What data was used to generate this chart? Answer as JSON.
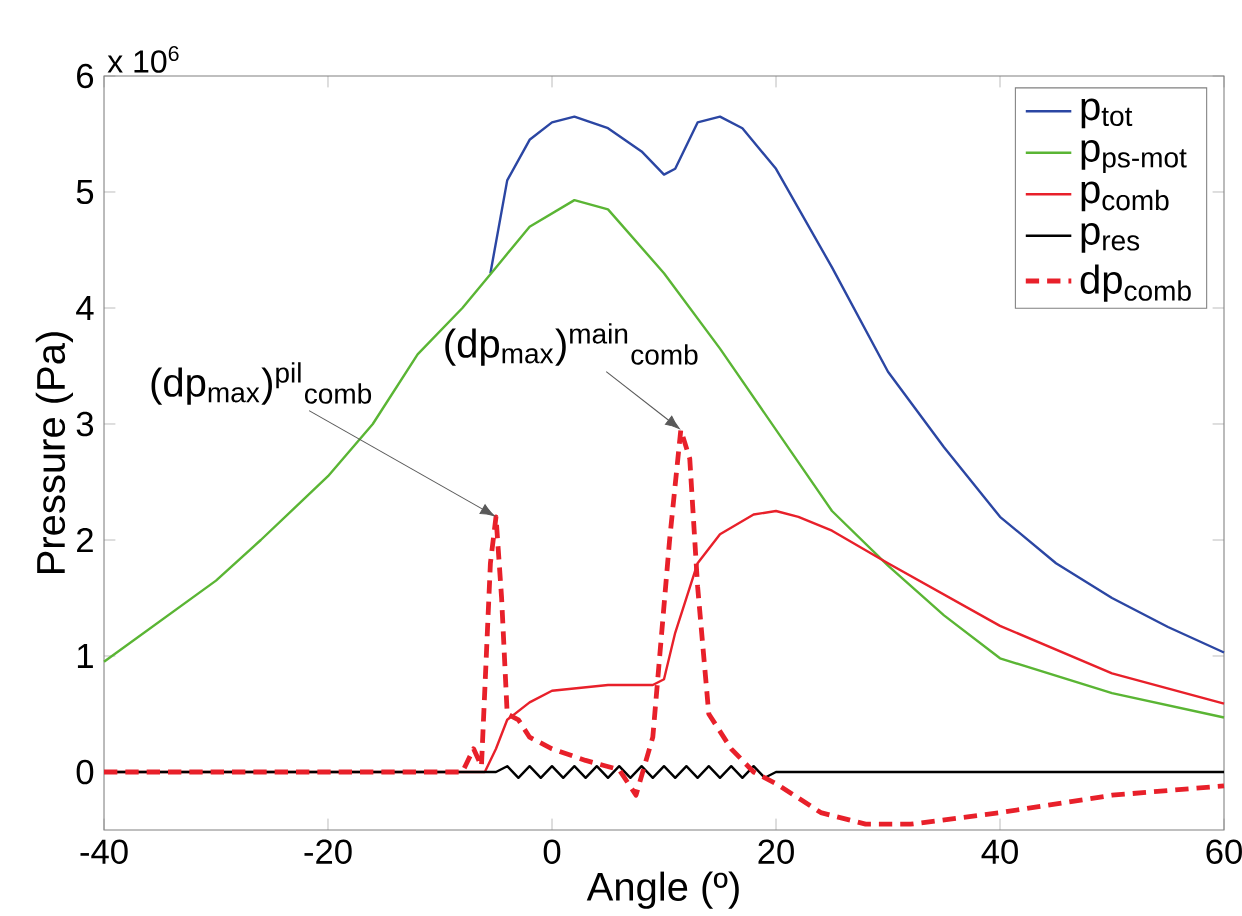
{
  "chart_data": {
    "type": "line",
    "xlabel": "Angle (º)",
    "ylabel": "Pressure (Pa)",
    "xlim": [
      -40,
      60
    ],
    "xticks": [
      -40,
      -20,
      0,
      20,
      40,
      60
    ],
    "ylim": [
      -0.5,
      6
    ],
    "yticks": [
      0,
      1,
      2,
      3,
      4,
      5,
      6
    ],
    "grid": false,
    "legend": "top right",
    "annotations": [
      "x 10$^{6}$",
      {
        "text": "(dp$_{max}$)$^{pil}$$_{comb}$",
        "x": -5,
        "y": 2.2
      },
      {
        "text": "(dp$_{max}$)$^{main}$$_{comb}$",
        "x": 11.5,
        "y": 2.95
      }
    ],
    "series": [
      {
        "name": "p$_{tot}$",
        "color": "#2b46a3",
        "line_style": "solid",
        "x": [
          -5.5,
          -4,
          -2,
          0,
          2,
          5,
          8,
          10,
          11,
          13,
          15,
          17,
          20,
          25,
          30,
          35,
          40,
          45,
          50,
          55,
          60
        ],
        "values": [
          4.3,
          5.1,
          5.45,
          5.6,
          5.65,
          5.55,
          5.35,
          5.15,
          5.2,
          5.6,
          5.65,
          5.55,
          5.2,
          4.35,
          3.45,
          2.8,
          2.2,
          1.8,
          1.5,
          1.25,
          1.03
        ]
      },
      {
        "name": "p$_{ps-mot}$",
        "color": "#5ab534",
        "line_style": "solid",
        "x": [
          -40,
          -35,
          -30,
          -26,
          -20,
          -16,
          -12,
          -8,
          -5,
          -2,
          2,
          5,
          10,
          15,
          20,
          25,
          30,
          35,
          40,
          50,
          60
        ],
        "values": [
          0.95,
          1.3,
          1.65,
          2.0,
          2.55,
          3.0,
          3.6,
          4.0,
          4.35,
          4.7,
          4.93,
          4.85,
          4.3,
          3.65,
          2.95,
          2.25,
          1.78,
          1.35,
          0.98,
          0.68,
          0.47
        ]
      },
      {
        "name": "p$_{comb}$",
        "color": "#e8202a",
        "line_style": "solid",
        "x": [
          -40,
          -6,
          -5,
          -4,
          -2,
          0,
          5,
          9,
          10,
          11,
          13,
          15,
          18,
          20,
          22,
          25,
          30,
          40,
          50,
          60
        ],
        "values": [
          0,
          0,
          0.2,
          0.45,
          0.6,
          0.7,
          0.75,
          0.75,
          0.8,
          1.2,
          1.8,
          2.05,
          2.22,
          2.25,
          2.2,
          2.08,
          1.8,
          1.26,
          0.85,
          0.59
        ]
      },
      {
        "name": "p$_{res}$",
        "color": "#000000",
        "line_style": "solid",
        "x": [
          -40,
          -5,
          -4,
          -3,
          -2,
          -1,
          0,
          1,
          2,
          3,
          4,
          5,
          6,
          7,
          8,
          9,
          10,
          11,
          12,
          13,
          14,
          15,
          16,
          17,
          18,
          19,
          20,
          60
        ],
        "values": [
          0,
          0,
          0.05,
          -0.05,
          0.05,
          -0.05,
          0.05,
          -0.05,
          0.05,
          -0.05,
          0.05,
          -0.05,
          0.05,
          -0.05,
          0.05,
          -0.05,
          0.05,
          -0.05,
          0.05,
          -0.05,
          0.05,
          -0.05,
          0.05,
          -0.05,
          0.05,
          -0.05,
          0,
          0
        ]
      },
      {
        "name": "dp$_{comb}$",
        "color": "#e8202a",
        "line_style": "dashed",
        "x": [
          -40,
          -8,
          -7,
          -6.3,
          -5.5,
          -5,
          -4.5,
          -4,
          -3,
          -2,
          0,
          3,
          6,
          7.5,
          9,
          10.5,
          11.5,
          12.3,
          13,
          14,
          16,
          18,
          20,
          24,
          28,
          32,
          40,
          50,
          60
        ],
        "values": [
          0,
          0,
          0.2,
          0.05,
          1.8,
          2.2,
          1.5,
          0.5,
          0.45,
          0.3,
          0.2,
          0.1,
          0.02,
          -0.2,
          0.3,
          2.0,
          2.95,
          2.7,
          1.6,
          0.5,
          0.2,
          0,
          -0.1,
          -0.35,
          -0.45,
          -0.45,
          -0.35,
          -0.2,
          -0.12
        ]
      }
    ]
  }
}
